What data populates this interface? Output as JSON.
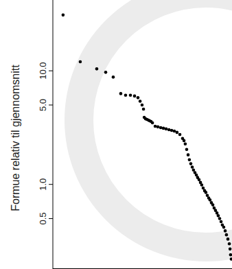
{
  "chart_data": {
    "type": "scatter",
    "y_label": "Formue relativ til gjennomsnitt",
    "log": "y",
    "tick_labels": "y",
    "color": "#000000",
    "marker": "circle",
    "xlim": [
      0,
      100
    ],
    "ylim": [
      0.18,
      42
    ],
    "yticks": [
      0.5,
      {
        "value": 1,
        "label": "1.0"
      },
      {
        "value": 5,
        "label": "5.0"
      },
      {
        "value": 10,
        "label": "10.0"
      }
    ],
    "x": [
      5.7,
      15.3,
      24.5,
      29.5,
      33.7,
      37.9,
      40.6,
      43.3,
      45.6,
      47.5,
      48.7,
      49.8,
      50.6,
      51.0,
      51.7,
      52.5,
      53.3,
      54.0,
      54.8,
      55.6,
      57.1,
      58.6,
      60.2,
      61.7,
      63.2,
      64.8,
      66.3,
      67.8,
      69.3,
      70.9,
      72.4,
      73.2,
      73.9,
      74.7,
      75.5,
      76.2,
      77.0,
      77.8,
      78.5,
      79.3,
      80.1,
      80.8,
      81.6,
      82.4,
      83.1,
      83.9,
      84.7,
      85.4,
      86.2,
      87.0,
      87.7,
      88.5,
      89.3,
      90.0,
      90.8,
      91.6,
      92.3,
      93.1,
      93.9,
      94.6,
      95.4,
      96.2,
      96.9,
      97.7,
      98.5,
      98.9,
      99.2,
      99.6
    ],
    "values": [
      31,
      12.0,
      10.4,
      9.7,
      8.8,
      6.3,
      6.1,
      6.1,
      6.0,
      5.8,
      5.4,
      5.0,
      4.6,
      3.89,
      3.78,
      3.73,
      3.68,
      3.63,
      3.58,
      3.48,
      3.25,
      3.21,
      3.16,
      3.12,
      3.08,
      3.03,
      2.99,
      2.95,
      2.87,
      2.75,
      2.54,
      2.43,
      2.27,
      2.03,
      1.82,
      1.65,
      1.52,
      1.42,
      1.34,
      1.27,
      1.21,
      1.15,
      1.1,
      1.04,
      0.99,
      0.93,
      0.88,
      0.85,
      0.8,
      0.76,
      0.73,
      0.69,
      0.66,
      0.62,
      0.59,
      0.56,
      0.53,
      0.5,
      0.47,
      0.44,
      0.42,
      0.39,
      0.36,
      0.33,
      0.3,
      0.27,
      0.24,
      0.22
    ]
  }
}
